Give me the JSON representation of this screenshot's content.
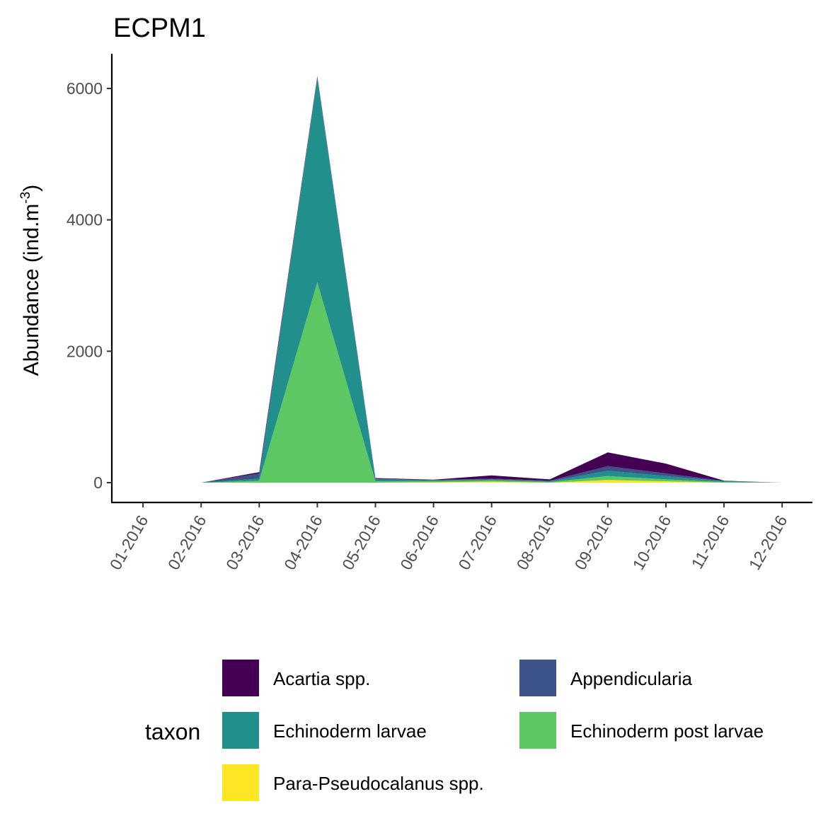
{
  "chart_data": {
    "type": "area",
    "stacked": true,
    "title": "ECPM1",
    "xlabel": "",
    "ylabel_main": "Abundance (ind.m",
    "ylabel_sup": "-3",
    "ylabel_close": ")",
    "ylim": [
      -300,
      6200
    ],
    "yticks": [
      0,
      2000,
      4000,
      6000
    ],
    "x_tick_labels": [
      "01-2016",
      "02-2016",
      "03-2016",
      "04-2016",
      "05-2016",
      "06-2016",
      "07-2016",
      "08-2016",
      "09-2016",
      "10-2016",
      "11-2016",
      "12-2016"
    ],
    "x": [
      2,
      3,
      4,
      5,
      6,
      7,
      8,
      9,
      10,
      11,
      12
    ],
    "legend_title": "taxon",
    "legend_position": "bottom",
    "series": [
      {
        "name": "Para-Pseudocalanus spp.",
        "color": "#FDE725",
        "values": [
          0,
          0,
          0,
          0,
          5,
          15,
          0,
          40,
          20,
          0,
          0
        ]
      },
      {
        "name": "Echinoderm post larvae",
        "color": "#5DC863",
        "values": [
          0,
          30,
          3050,
          20,
          15,
          20,
          10,
          60,
          30,
          10,
          0
        ]
      },
      {
        "name": "Echinoderm larvae",
        "color": "#21908C",
        "values": [
          0,
          30,
          3100,
          30,
          15,
          15,
          10,
          80,
          50,
          10,
          0
        ]
      },
      {
        "name": "Appendicularia",
        "color": "#3B528B",
        "values": [
          0,
          80,
          30,
          10,
          5,
          10,
          10,
          70,
          40,
          5,
          0
        ]
      },
      {
        "name": "Acartia spp.",
        "color": "#440154",
        "values": [
          0,
          20,
          10,
          10,
          5,
          50,
          20,
          210,
          150,
          5,
          0
        ]
      }
    ],
    "legend_order": [
      "Acartia spp.",
      "Appendicularia",
      "Echinoderm larvae",
      "Echinoderm post larvae",
      "Para-Pseudocalanus spp."
    ]
  }
}
